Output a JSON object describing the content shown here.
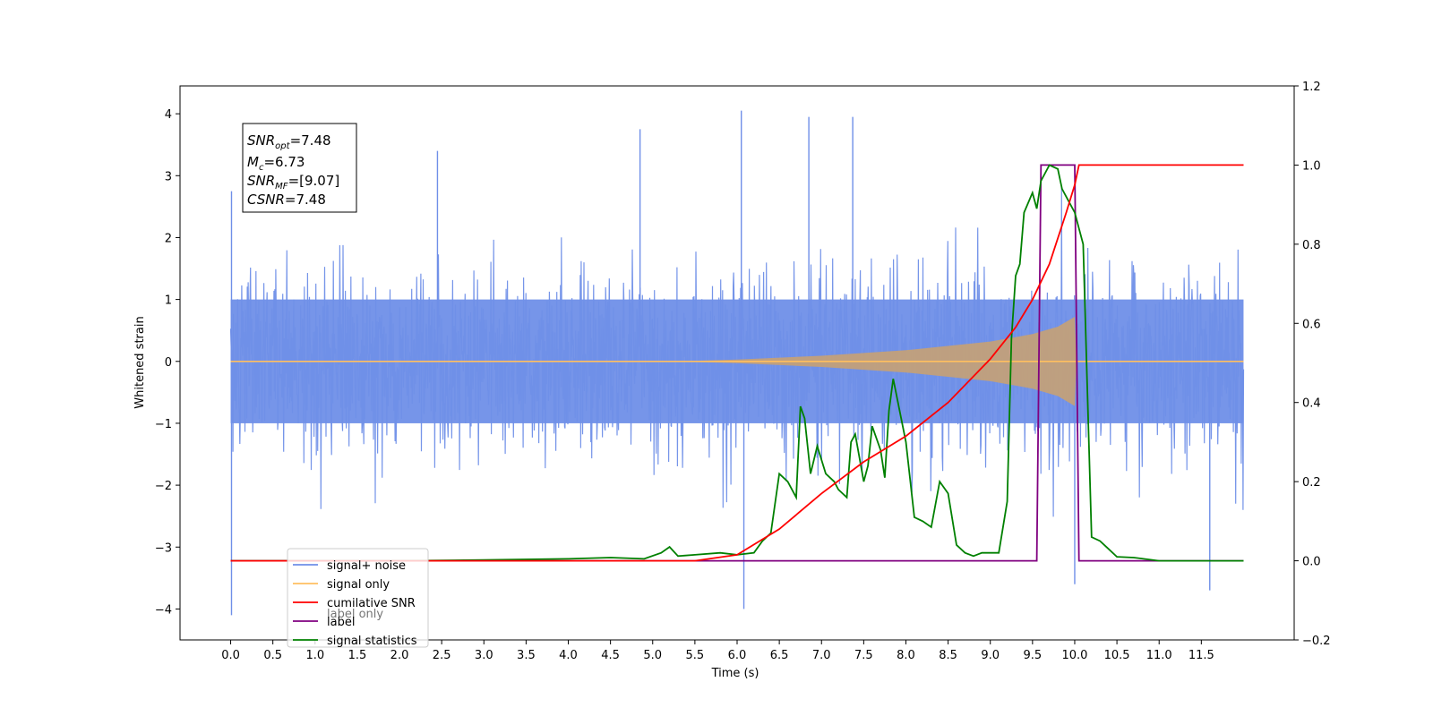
{
  "chart_data": {
    "type": "line",
    "title": "",
    "xlabel": "Time (s)",
    "ylabel": "Whitened strain",
    "xlim": [
      -0.6,
      12.6
    ],
    "ylim": [
      -4.5,
      4.45
    ],
    "y2lim": [
      -0.2,
      1.2
    ],
    "grid": false,
    "legend_position": "lower-left",
    "x_ticks": [
      "0.0",
      "0.5",
      "1.0",
      "1.5",
      "2.0",
      "2.5",
      "3.0",
      "3.5",
      "4.0",
      "4.5",
      "5.0",
      "5.5",
      "6.0",
      "6.5",
      "7.0",
      "7.5",
      "8.0",
      "8.5",
      "9.0",
      "9.5",
      "10.0",
      "10.5",
      "11.0",
      "11.5"
    ],
    "y_ticks": [
      "4",
      "3",
      "2",
      "1",
      "0",
      "−1",
      "−2",
      "−3",
      "−4"
    ],
    "y2_ticks": [
      "1.2",
      "1.0",
      "0.8",
      "0.6",
      "0.4",
      "0.2",
      "0.0",
      "−0.2"
    ],
    "info_box": {
      "snr_opt": {
        "symbol": "SNR",
        "sub": "opt",
        "value": "=7.48"
      },
      "mc": {
        "symbol": "M",
        "sub": "c",
        "value": "=6.73"
      },
      "snr_mf": {
        "symbol": "SNR",
        "sub": "MF",
        "value": "=[9.07]"
      },
      "csnr": {
        "symbol": "CSNR",
        "value": "=7.48"
      }
    },
    "legend": [
      {
        "label": "signal+ noise",
        "color": "#6f8fe8"
      },
      {
        "label": "signal only",
        "color": "#ffbf60"
      },
      {
        "label": "cumilative SNR",
        "color": "#ff0000"
      },
      {
        "label": "label",
        "color": "#800080"
      },
      {
        "label": "signal statistics",
        "color": "#008000"
      }
    ],
    "hidden_legend_text": "label only",
    "series": [
      {
        "name": "signal+ noise",
        "axis": "left",
        "color": "#6f8fe8",
        "x_range": [
          0,
          12
        ],
        "description_values": {
          "typical_peak": 2.3,
          "max": 4.05,
          "min": -4.1
        },
        "spikes": [
          [
            0.01,
            -4.1
          ],
          [
            0.01,
            2.75
          ],
          [
            6.05,
            4.05
          ],
          [
            6.08,
            -4.0
          ],
          [
            6.85,
            3.95
          ],
          [
            7.37,
            3.95
          ],
          [
            10.0,
            -3.6
          ],
          [
            11.6,
            -3.7
          ],
          [
            4.85,
            3.75
          ],
          [
            2.45,
            3.4
          ]
        ]
      },
      {
        "name": "signal only",
        "axis": "left",
        "color": "#ffbf60",
        "x_range": [
          0,
          12
        ],
        "envelope": [
          [
            0,
            0.005
          ],
          [
            5.5,
            0.01
          ],
          [
            6.0,
            0.03
          ],
          [
            7.0,
            0.09
          ],
          [
            8.0,
            0.18
          ],
          [
            9.0,
            0.32
          ],
          [
            9.5,
            0.44
          ],
          [
            9.8,
            0.56
          ],
          [
            10.0,
            0.72
          ],
          [
            10.02,
            0.0
          ],
          [
            12.0,
            0.0
          ]
        ]
      },
      {
        "name": "cumilative SNR",
        "axis": "right",
        "color": "#ff0000",
        "x": [
          0,
          5.5,
          6.0,
          6.5,
          7.0,
          7.5,
          8.0,
          8.5,
          9.0,
          9.3,
          9.5,
          9.7,
          9.9,
          10.0,
          10.05,
          12.0
        ],
        "y": [
          0,
          0,
          0.015,
          0.08,
          0.17,
          0.25,
          0.315,
          0.4,
          0.51,
          0.59,
          0.66,
          0.75,
          0.88,
          0.95,
          1.0,
          1.0
        ]
      },
      {
        "name": "label",
        "axis": "right",
        "color": "#800080",
        "x": [
          0,
          9.55,
          9.6,
          10.0,
          10.05,
          12.0
        ],
        "y": [
          0,
          0,
          1.0,
          1.0,
          0,
          0
        ]
      },
      {
        "name": "signal statistics",
        "axis": "right",
        "color": "#008000",
        "x": [
          0,
          1,
          2,
          3,
          4,
          4.5,
          4.9,
          5.1,
          5.2,
          5.3,
          5.5,
          5.8,
          6.0,
          6.2,
          6.3,
          6.4,
          6.5,
          6.6,
          6.7,
          6.75,
          6.8,
          6.87,
          6.95,
          7.05,
          7.15,
          7.2,
          7.3,
          7.35,
          7.4,
          7.5,
          7.55,
          7.6,
          7.7,
          7.75,
          7.8,
          7.85,
          8.0,
          8.1,
          8.2,
          8.3,
          8.4,
          8.5,
          8.6,
          8.7,
          8.8,
          8.9,
          9.0,
          9.1,
          9.2,
          9.25,
          9.3,
          9.35,
          9.4,
          9.5,
          9.55,
          9.6,
          9.7,
          9.8,
          9.85,
          9.9,
          10.0,
          10.1,
          10.2,
          10.3,
          10.4,
          10.5,
          10.7,
          11.0,
          12.0
        ],
        "y": [
          0,
          0,
          0,
          0.002,
          0.005,
          0.008,
          0.005,
          0.02,
          0.035,
          0.012,
          0.015,
          0.02,
          0.015,
          0.02,
          0.05,
          0.07,
          0.22,
          0.2,
          0.16,
          0.39,
          0.36,
          0.22,
          0.29,
          0.22,
          0.2,
          0.18,
          0.16,
          0.3,
          0.32,
          0.2,
          0.24,
          0.34,
          0.28,
          0.21,
          0.38,
          0.46,
          0.3,
          0.11,
          0.1,
          0.085,
          0.2,
          0.17,
          0.04,
          0.02,
          0.012,
          0.02,
          0.02,
          0.02,
          0.15,
          0.56,
          0.72,
          0.75,
          0.88,
          0.93,
          0.89,
          0.96,
          1.0,
          0.99,
          0.94,
          0.92,
          0.88,
          0.8,
          0.06,
          0.05,
          0.03,
          0.01,
          0.008,
          0,
          0
        ]
      }
    ]
  }
}
